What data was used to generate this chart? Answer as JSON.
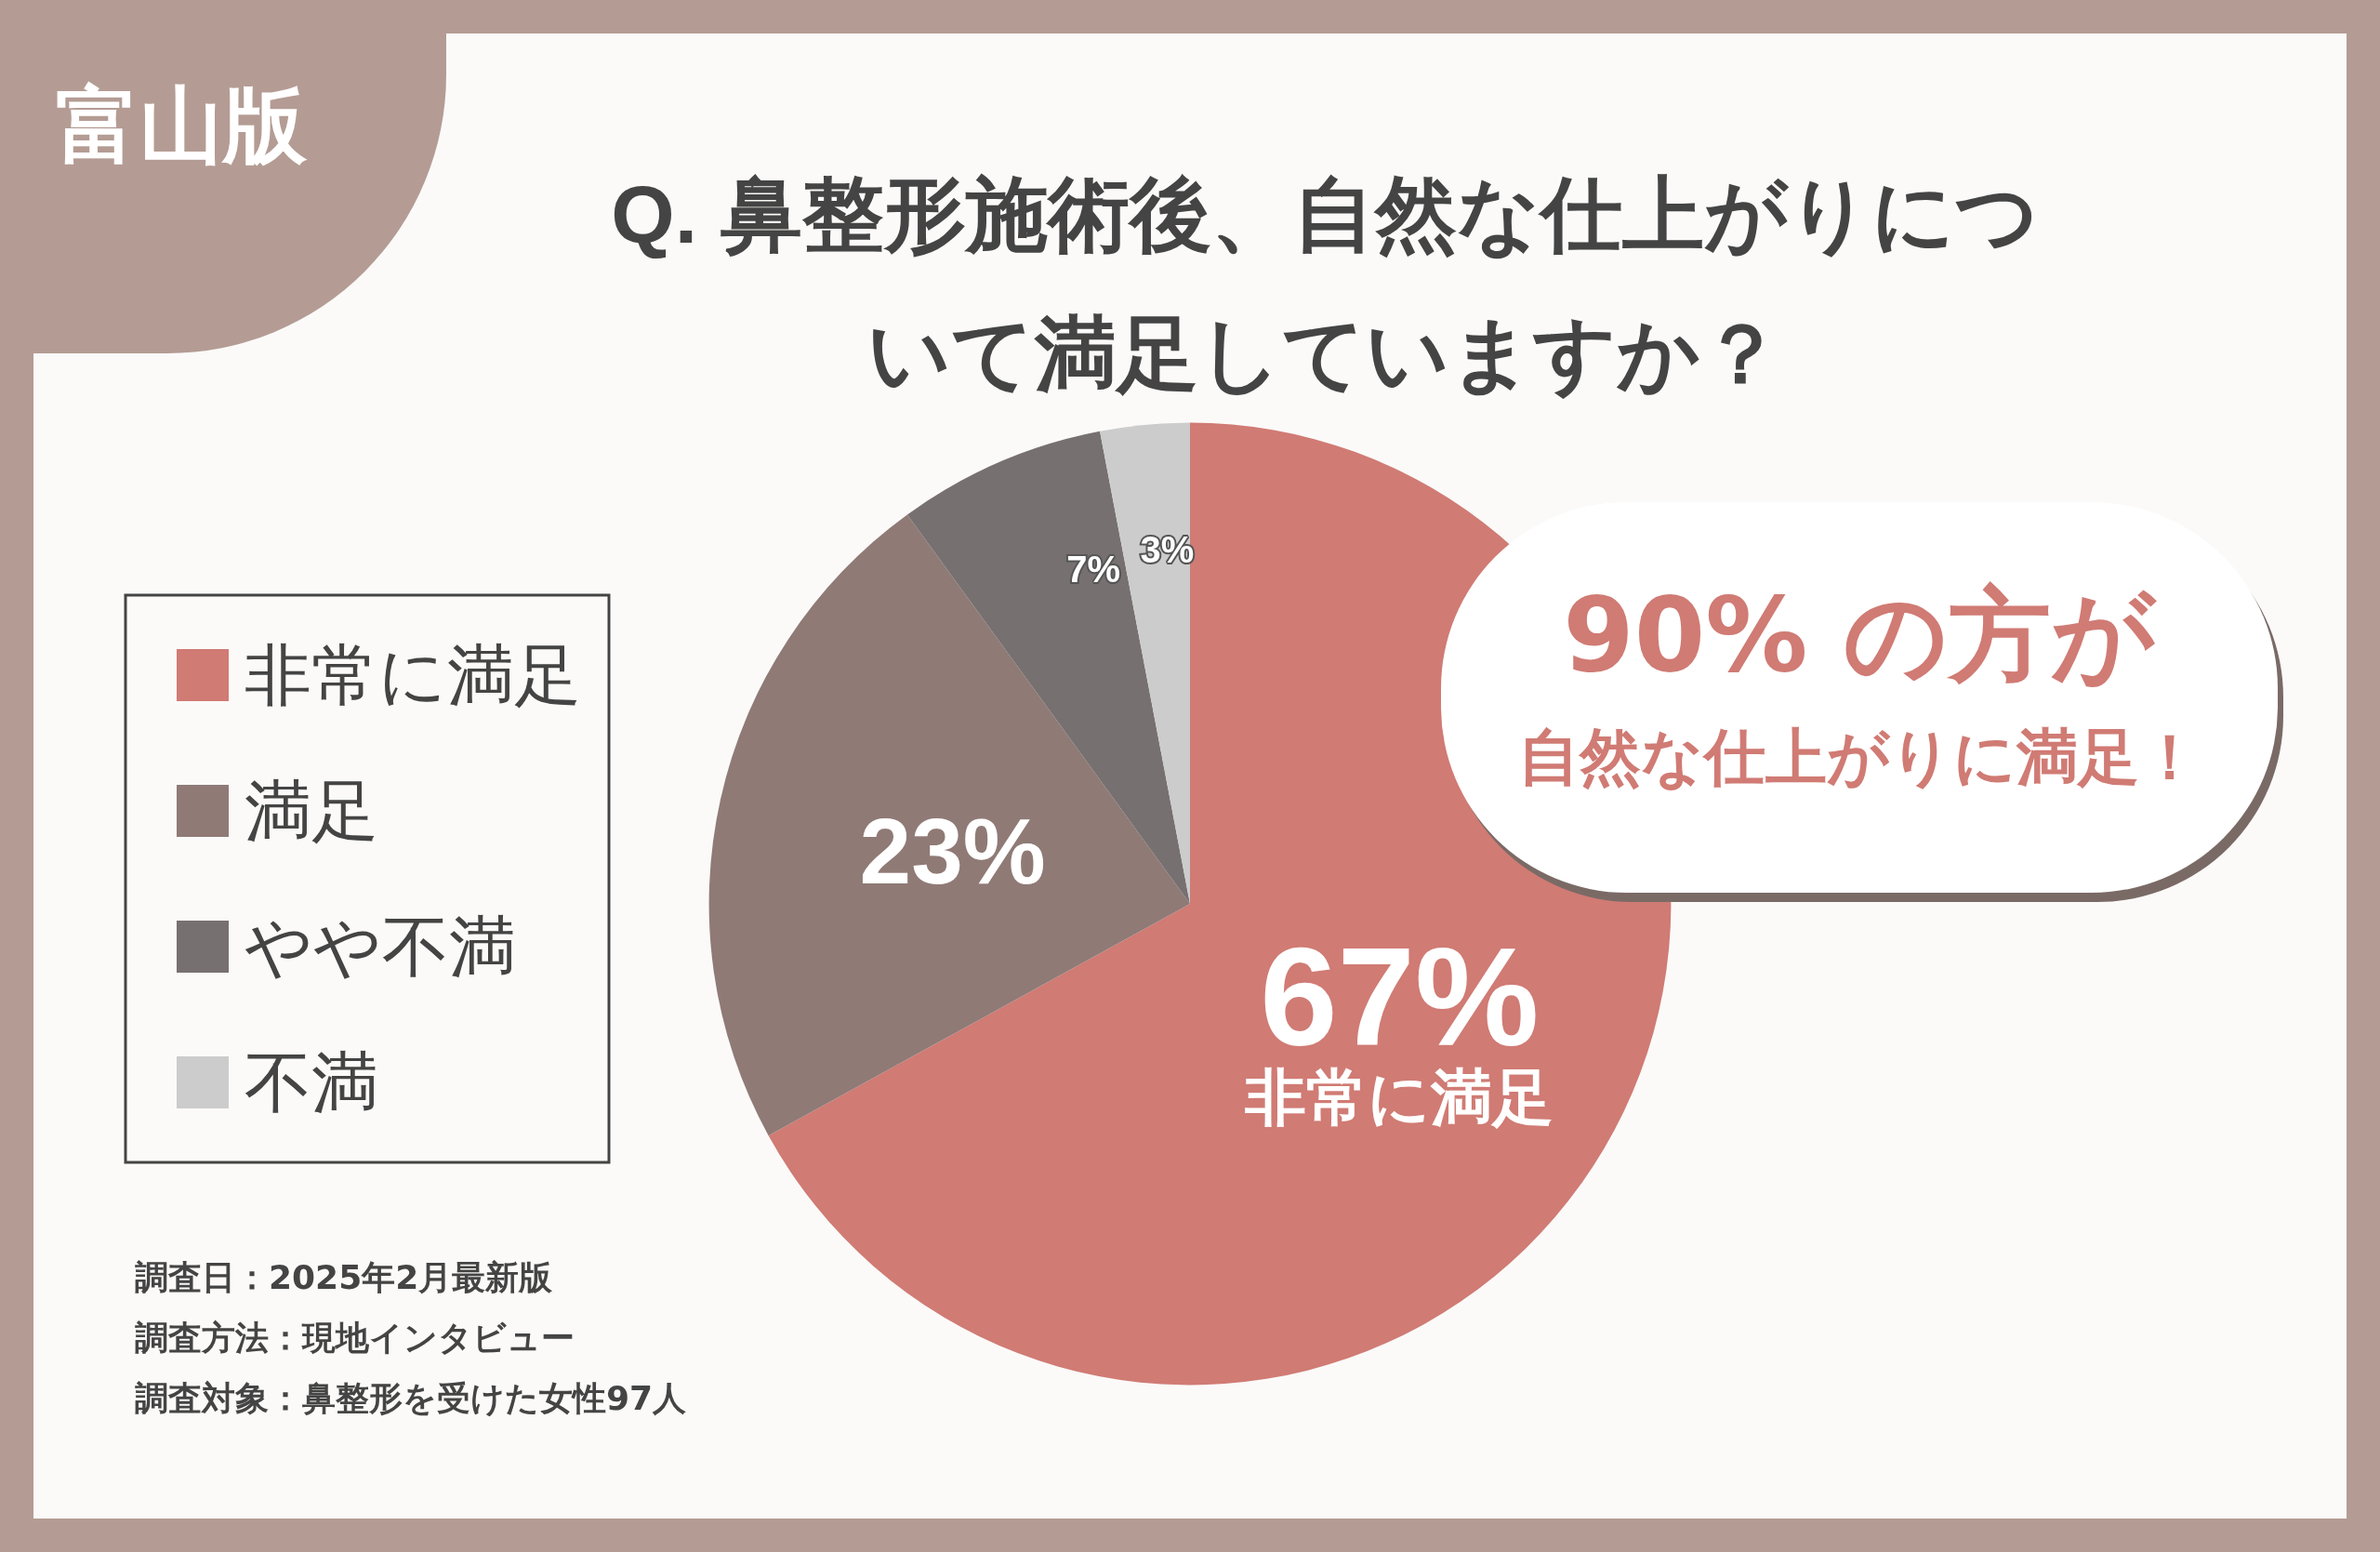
{
  "chart_data": {
    "type": "pie",
    "title": "Q. 鼻整形施術後、自然な仕上がりについて満足していますか？",
    "categories": [
      "非常に満足",
      "満足",
      "やや不満",
      "不満"
    ],
    "values": [
      67,
      23,
      7,
      3
    ],
    "colors": [
      "#d07b74",
      "#8f7a76",
      "#777070",
      "#cccccc"
    ],
    "value_labels": [
      "67%\n非常に満足",
      "23%",
      "7%",
      "3%"
    ],
    "legend": "left",
    "annotations": [
      "富山版",
      "90% の方が",
      "自然な仕上がりに満足！",
      "調査日：2025年2月最新版",
      "調査方法：現地インタビュー",
      "調査対象：鼻整形を受けた女性97人"
    ]
  }
}
